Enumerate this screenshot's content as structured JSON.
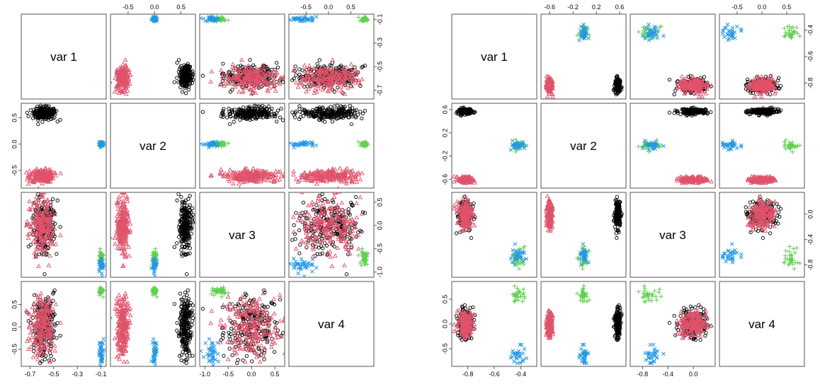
{
  "figure": {
    "layout": "two scatterplot matrices side by side"
  },
  "colors": {
    "black": "#000000",
    "red": "#DF536B",
    "green": "#61D04F",
    "blue": "#2297E6"
  },
  "marker_legend": {
    "black": "open circle",
    "red": "open triangle",
    "green": "plus",
    "blue": "cross"
  },
  "chart_data": [
    {
      "type": "scatter",
      "title": "",
      "variables": [
        "var 1",
        "var 2",
        "var 3",
        "var 4"
      ],
      "ranges": {
        "var 1": [
          -0.75,
          -0.08
        ],
        "var 2": [
          -0.78,
          0.72
        ],
        "var 3": [
          -1.05,
          0.65
        ],
        "var 4": [
          -0.82,
          0.95
        ]
      },
      "ticks": {
        "var 1": {
          "values": [
            -0.7,
            -0.5,
            -0.3,
            -0.1
          ],
          "labels": [
            "-0.7",
            "-0.5",
            "-0.3",
            "-0.1"
          ]
        },
        "var 2": {
          "values": [
            -0.5,
            0.0,
            0.5
          ],
          "labels": [
            "-0.5",
            "0.0",
            "0.5"
          ]
        },
        "var 3": {
          "values": [
            -1.0,
            -0.5,
            0.0,
            0.5
          ],
          "labels": [
            "-1.0",
            "-0.5",
            "0.0",
            "0.5"
          ]
        },
        "var 4": {
          "values": [
            -0.5,
            0.0,
            0.5
          ],
          "labels": [
            "-0.5",
            "0.0",
            "0.5"
          ]
        }
      },
      "grid": false,
      "groups": [
        {
          "color": "black",
          "marker": "circle",
          "mean": [
            -0.58,
            0.58,
            0.0,
            0.0
          ],
          "sd": [
            0.05,
            0.06,
            0.3,
            0.35
          ],
          "n": 220
        },
        {
          "color": "red",
          "marker": "triangle",
          "mean": [
            -0.6,
            -0.6,
            0.0,
            0.0
          ],
          "sd": [
            0.05,
            0.06,
            0.3,
            0.35
          ],
          "n": 220
        },
        {
          "color": "green",
          "marker": "plus",
          "mean": [
            -0.1,
            0.0,
            -0.68,
            0.8
          ],
          "sd": [
            0.01,
            0.02,
            0.08,
            0.05
          ],
          "n": 40
        },
        {
          "color": "blue",
          "marker": "cross",
          "mean": [
            -0.1,
            0.0,
            -0.85,
            -0.6
          ],
          "sd": [
            0.01,
            0.02,
            0.08,
            0.15
          ],
          "n": 40
        }
      ]
    },
    {
      "type": "scatter",
      "title": "",
      "variables": [
        "var 1",
        "var 2",
        "var 3",
        "var 4"
      ],
      "ranges": {
        "var 1": [
          -0.9,
          -0.3
        ],
        "var 2": [
          -0.7,
          0.66
        ],
        "var 3": [
          -0.95,
          0.3
        ],
        "var 4": [
          -0.8,
          0.8
        ]
      },
      "ticks": {
        "var 1": {
          "values": [
            -0.8,
            -0.6,
            -0.4
          ],
          "labels": [
            "-0.8",
            "-0.6",
            "-0.4"
          ]
        },
        "var 2": {
          "values": [
            -0.6,
            -0.2,
            0.2,
            0.6
          ],
          "labels": [
            "-0.6",
            "-0.2",
            "0.2",
            "0.6"
          ]
        },
        "var 3": {
          "values": [
            -0.8,
            -0.4,
            0.0
          ],
          "labels": [
            "-0.8",
            "-0.4",
            "0.0"
          ]
        },
        "var 4": {
          "values": [
            -0.5,
            0.0,
            0.5
          ],
          "labels": [
            "-0.5",
            "0.0",
            "0.5"
          ]
        }
      },
      "ticks_matrix": {
        "var 1": {
          "values": [
            -0.8,
            -0.6,
            -0.4
          ],
          "labels": [
            "-0.8",
            "-0.6",
            "-0.4"
          ]
        },
        "var 2": {
          "values": [
            -0.6,
            -0.2,
            0.2,
            0.6
          ],
          "labels": [
            "-0.6",
            "-0.2",
            "0.2",
            "0.6"
          ]
        },
        "var 3": {
          "values": [
            -0.8,
            -0.4,
            0.0
          ],
          "labels": [
            "-0.8",
            "-0.4",
            "0.0"
          ]
        },
        "var 4": {
          "values": [
            -0.5,
            0.0,
            0.5
          ],
          "labels": [
            "-0.5",
            "0.0",
            "0.5"
          ]
        }
      },
      "grid": false,
      "groups": [
        {
          "color": "black",
          "marker": "circle",
          "mean": [
            -0.82,
            0.57,
            0.0,
            0.0
          ],
          "sd": [
            0.025,
            0.025,
            0.1,
            0.13
          ],
          "n": 200
        },
        {
          "color": "red",
          "marker": "triangle",
          "mean": [
            -0.82,
            -0.6,
            0.0,
            0.0
          ],
          "sd": [
            0.025,
            0.025,
            0.1,
            0.13
          ],
          "n": 200
        },
        {
          "color": "green",
          "marker": "plus",
          "mean": [
            -0.42,
            -0.02,
            -0.7,
            0.62
          ],
          "sd": [
            0.03,
            0.04,
            0.07,
            0.08
          ],
          "n": 30
        },
        {
          "color": "blue",
          "marker": "cross",
          "mean": [
            -0.42,
            -0.02,
            -0.68,
            -0.6
          ],
          "sd": [
            0.03,
            0.04,
            0.08,
            0.12
          ],
          "n": 30
        }
      ]
    }
  ]
}
